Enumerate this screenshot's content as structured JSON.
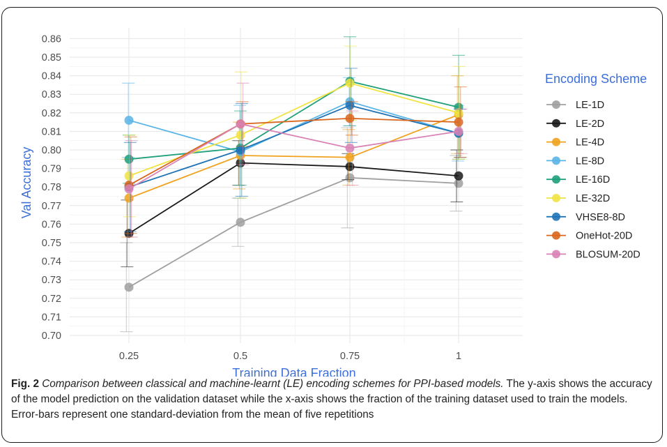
{
  "chart_data": {
    "type": "line",
    "xlabel": "Training Data Fraction",
    "ylabel": "Val Accuracy",
    "x": [
      0.25,
      0.5,
      0.75,
      1
    ],
    "x_tick_labels": [
      "0.25",
      "0.5",
      "0.75",
      "1"
    ],
    "ylim": [
      0.7,
      0.86
    ],
    "y_ticks": [
      "0.70",
      "0.71",
      "0.72",
      "0.73",
      "0.74",
      "0.75",
      "0.76",
      "0.77",
      "0.78",
      "0.79",
      "0.80",
      "0.81",
      "0.82",
      "0.83",
      "0.84",
      "0.85",
      "0.86"
    ],
    "grid": true,
    "legend": {
      "title": "Encoding Scheme",
      "placement": "right"
    },
    "series": [
      {
        "name": "LE-1D",
        "color": "#a0a0a0",
        "values": [
          0.726,
          0.761,
          0.785,
          0.782
        ],
        "err": [
          0.024,
          0.013,
          0.027,
          0.015
        ]
      },
      {
        "name": "LE-2D",
        "color": "#1a1a1a",
        "values": [
          0.755,
          0.793,
          0.791,
          0.786
        ],
        "err": [
          0.018,
          0.012,
          0.007,
          0.014
        ]
      },
      {
        "name": "LE-4D",
        "color": "#f0a21d",
        "values": [
          0.774,
          0.797,
          0.796,
          0.819
        ],
        "err": [
          0.021,
          0.018,
          0.015,
          0.021
        ]
      },
      {
        "name": "LE-8D",
        "color": "#5ab4e6",
        "values": [
          0.816,
          0.799,
          0.826,
          0.809
        ],
        "err": [
          0.02,
          0.025,
          0.013,
          0.015
        ]
      },
      {
        "name": "LE-16D",
        "color": "#1fa07a",
        "values": [
          0.795,
          0.801,
          0.837,
          0.823
        ],
        "err": [
          0.013,
          0.02,
          0.024,
          0.028
        ]
      },
      {
        "name": "LE-32D",
        "color": "#f0e442",
        "values": [
          0.786,
          0.808,
          0.836,
          0.82
        ],
        "err": [
          0.022,
          0.034,
          0.02,
          0.025
        ]
      },
      {
        "name": "VHSE8-8D",
        "color": "#1f73b7",
        "values": [
          0.78,
          0.8,
          0.824,
          0.809
        ],
        "err": [
          0.024,
          0.025,
          0.02,
          0.013
        ]
      },
      {
        "name": "OneHot-20D",
        "color": "#d9661c",
        "values": [
          0.781,
          0.814,
          0.817,
          0.815
        ],
        "err": [
          0.026,
          0.012,
          0.009,
          0.019
        ]
      },
      {
        "name": "BLOSUM-20D",
        "color": "#d982b6",
        "values": [
          0.779,
          0.814,
          0.801,
          0.81
        ],
        "err": [
          0.026,
          0.022,
          0.02,
          0.012
        ]
      }
    ]
  },
  "caption": {
    "fig_label": "Fig. 2",
    "title": "Comparison between classical and machine-learnt (LE) encoding schemes for PPI-based models.",
    "body": "The y-axis shows the accuracy of the model prediction on the validation dataset while the x-axis shows the fraction of the training dataset used to train the models. Error-bars represent one standard-deviation from the mean of five repetitions"
  }
}
